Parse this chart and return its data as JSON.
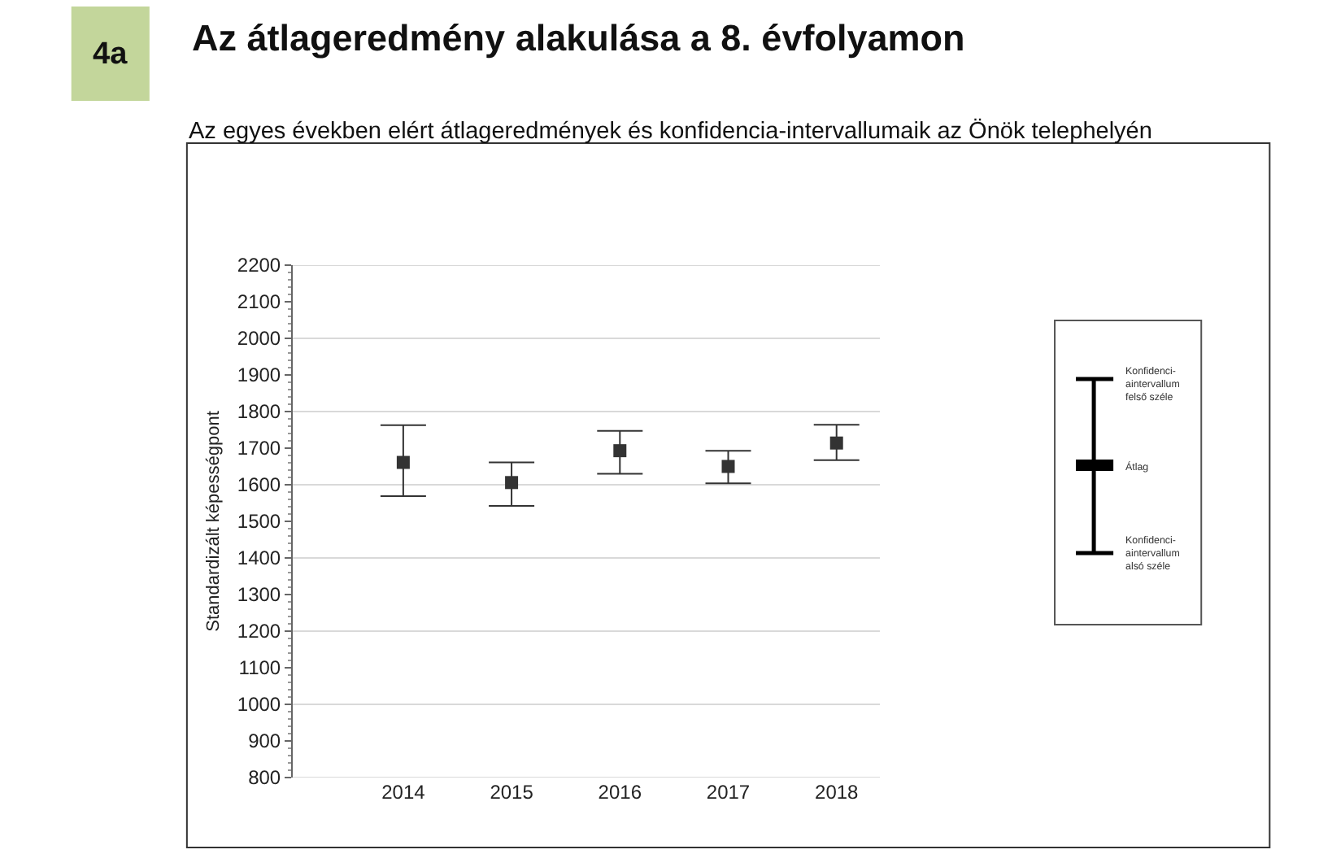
{
  "chart_data": {
    "type": "scatter",
    "title": "Az átlageredmény alakulása a 8. évfolyamon",
    "subtitle": "Az egyes években elért átlageredmények és konfidencia-intervallumaik az Önök telephelyén",
    "ylabel": "Standardizált képességpont",
    "categories": [
      "2014",
      "2015",
      "2016",
      "2017",
      "2018"
    ],
    "values": [
      1661,
      1606,
      1693,
      1650,
      1714
    ],
    "errors": [
      [
        1569,
        1763
      ],
      [
        1542,
        1661
      ],
      [
        1630,
        1747
      ],
      [
        1604,
        1693
      ],
      [
        1667,
        1764
      ]
    ],
    "color": "#333333",
    "marker": "square",
    "ylim": [
      800,
      2200
    ],
    "yticks": [
      800,
      900,
      1000,
      1100,
      1200,
      1300,
      1400,
      1500,
      1600,
      1700,
      1800,
      1900,
      2000,
      2100,
      2200
    ],
    "grid": "y",
    "annotations": [
      "4a",
      "Konfidenci-\naintervallum\nfelső széle",
      "Átlag",
      "Konfidenci-\naintervallum\nalsó széle"
    ]
  }
}
